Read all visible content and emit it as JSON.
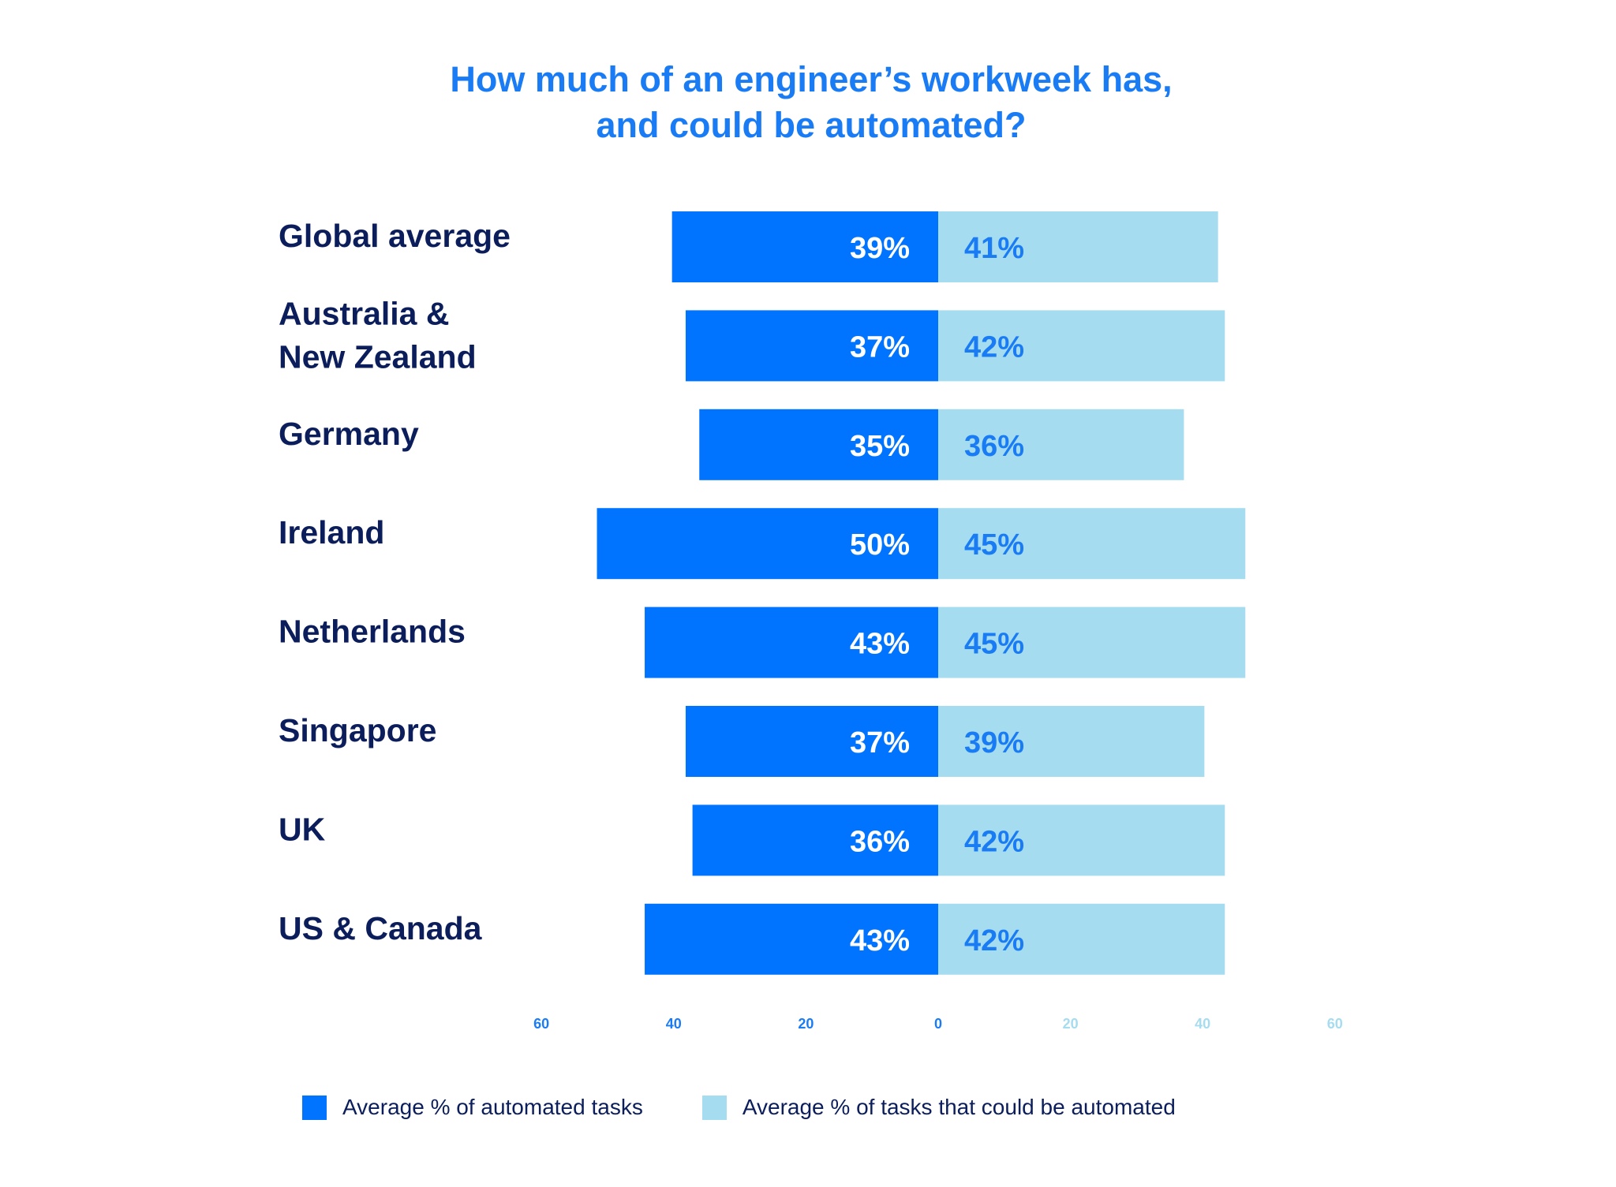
{
  "chart_data": {
    "type": "bar",
    "orientation": "horizontal-diverging",
    "title": "How much of an engineer’s workweek has, and could be automated?",
    "title_lines": [
      "How much of an engineer’s workweek has,",
      "and could be automated?"
    ],
    "categories": [
      "Global average",
      "Australia & New Zealand",
      "Germany",
      "Ireland",
      "Netherlands",
      "Singapore",
      "UK",
      "US & Canada"
    ],
    "category_lines": [
      [
        "Global average"
      ],
      [
        "Australia &",
        "New Zealand"
      ],
      [
        "Germany"
      ],
      [
        "Ireland"
      ],
      [
        "Netherlands"
      ],
      [
        "Singapore"
      ],
      [
        "UK"
      ],
      [
        "US & Canada"
      ]
    ],
    "series": [
      {
        "name": "Average % of automated tasks",
        "color": "#0074ff",
        "label_color": "#ffffff",
        "side": "left",
        "values": [
          39,
          37,
          35,
          50,
          43,
          37,
          36,
          43
        ]
      },
      {
        "name": "Average % of tasks that could be automated",
        "color": "#a6dcef",
        "label_color": "#1a7cf5",
        "side": "right",
        "values": [
          41,
          42,
          36,
          45,
          45,
          39,
          42,
          42
        ]
      }
    ],
    "value_suffix": "%",
    "xlim": [
      -60,
      60
    ],
    "xticks": [
      {
        "value": -60,
        "label": "60"
      },
      {
        "value": -40,
        "label": "40"
      },
      {
        "value": -20,
        "label": "20"
      },
      {
        "value": 0,
        "label": "0"
      },
      {
        "value": 20,
        "label": "20"
      },
      {
        "value": 40,
        "label": "40"
      },
      {
        "value": 60,
        "label": "60"
      }
    ],
    "tick_colors": {
      "left": "#1a7cf5",
      "right": "#a6dcef"
    },
    "grid": false,
    "legend_position": "bottom-left"
  }
}
